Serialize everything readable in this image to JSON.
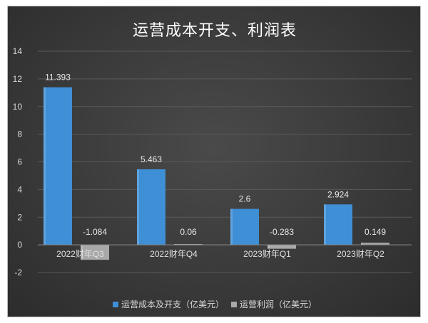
{
  "chart_data": {
    "type": "bar",
    "title": "运营成本开支、利润表",
    "categories": [
      "2022财年Q3",
      "2022财年Q4",
      "2023财年Q1",
      "2023财年Q2"
    ],
    "series": [
      {
        "name": "运营成本及开支（亿美元）",
        "values": [
          11.393,
          5.463,
          2.6,
          2.924
        ],
        "labels": [
          "11.393",
          "5.463",
          "2.6",
          "2.924"
        ],
        "color": "#3f8fd6"
      },
      {
        "name": "运营利润（亿美元）",
        "values": [
          -1.084,
          0.06,
          -0.283,
          0.149
        ],
        "labels": [
          "-1.084",
          "0.06",
          "-0.283",
          "0.149"
        ],
        "color": "#a8a8a8"
      }
    ],
    "ylim": [
      -2,
      14
    ],
    "yticks": [
      "-2",
      "0",
      "2",
      "4",
      "6",
      "8",
      "10",
      "12",
      "14"
    ],
    "grid": true,
    "legend": "bottom"
  }
}
